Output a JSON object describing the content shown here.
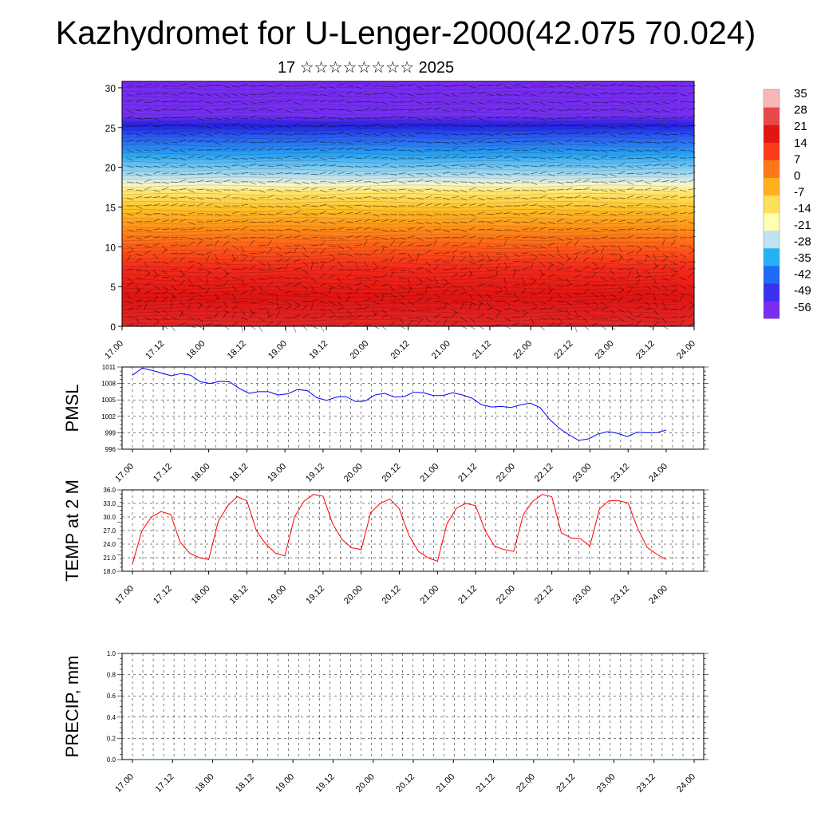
{
  "title": "Kazhydromet for U-Lenger-2000(42.075 70.024)",
  "subtitle": "17 ☆☆☆☆☆☆☆☆ 2025",
  "x_labels": [
    "17.00",
    "17.12",
    "18.00",
    "18.12",
    "19.00",
    "19.12",
    "20.00",
    "20.12",
    "21.00",
    "21.12",
    "22.00",
    "22.12",
    "23.00",
    "23.12",
    "24.00"
  ],
  "colorbar": {
    "labels": [
      "35",
      "28",
      "21",
      "14",
      "7",
      "0",
      "-7",
      "-14",
      "-21",
      "-28",
      "-35",
      "-42",
      "-49",
      "-56"
    ],
    "colors": [
      "#7a2cf0",
      "#3a30f0",
      "#1e6cf5",
      "#26b2f2",
      "#bfe3f2",
      "#ffffb0",
      "#ffe05a",
      "#ffb01e",
      "#ff7818",
      "#ff3a1a",
      "#e41414",
      "#e8484c",
      "#f8b8b8"
    ]
  },
  "chart_data": [
    {
      "type": "heatmap",
      "description_key": "vertical cross-section",
      "ylim": [
        0,
        30
      ],
      "yticks": [
        0,
        5,
        10,
        15,
        20,
        25,
        30
      ],
      "colorscale_range": [
        -56,
        35
      ]
    },
    {
      "type": "line",
      "ylabel": "PMSL",
      "ylim": [
        996,
        1011
      ],
      "yticks": [
        996,
        999,
        1002,
        1005,
        1008,
        1011
      ],
      "series": [
        {
          "color": "#0000ff",
          "values": [
            1009.5,
            1010.8,
            1010.4,
            1009.9,
            1009.4,
            1009.8,
            1009.5,
            1008.3,
            1008.0,
            1008.4,
            1008.3,
            1007.1,
            1006.2,
            1006.5,
            1006.5,
            1005.9,
            1006.1,
            1006.9,
            1006.7,
            1005.4,
            1004.9,
            1005.5,
            1005.6,
            1004.7,
            1004.8,
            1005.9,
            1006.2,
            1005.5,
            1005.6,
            1006.4,
            1006.3,
            1005.8,
            1005.8,
            1006.3,
            1005.9,
            1005.3,
            1004.1,
            1003.7,
            1003.8,
            1003.6,
            1004.1,
            1004.4,
            1003.6,
            1001.4,
            999.8,
            998.6,
            997.6,
            997.9,
            998.8,
            999.2,
            998.9,
            998.3,
            999.1,
            999.0,
            999.0,
            999.5
          ]
        }
      ],
      "x_range": [
        "17.00",
        "24.00"
      ],
      "grid": true
    },
    {
      "type": "line",
      "ylabel": "TEMP at 2 M",
      "ylim": [
        18.0,
        36.0
      ],
      "yticks": [
        "18.0",
        "21.0",
        "24.0",
        "27.0",
        "30.0",
        "33.0",
        "36.0"
      ],
      "series": [
        {
          "color": "#ff0000",
          "values": [
            19.6,
            27.0,
            30.0,
            31.2,
            30.6,
            24.5,
            22.0,
            21.0,
            20.6,
            29.0,
            32.5,
            34.5,
            33.6,
            27.0,
            24.0,
            22.0,
            21.4,
            30.0,
            33.5,
            35.0,
            34.6,
            28.5,
            25.0,
            23.2,
            22.8,
            31.0,
            33.0,
            34.0,
            31.8,
            26.0,
            22.4,
            21.0,
            20.2,
            28.5,
            32.0,
            33.0,
            32.5,
            27.0,
            23.5,
            22.8,
            22.4,
            30.5,
            33.5,
            35.0,
            34.5,
            26.5,
            25.4,
            25.2,
            23.6,
            31.8,
            33.6,
            33.6,
            33.1,
            27.5,
            23.3,
            21.8,
            20.6
          ]
        }
      ],
      "x_range": [
        "17.00",
        "24.00"
      ],
      "grid": true
    },
    {
      "type": "line",
      "ylabel": "PRECIP, mm",
      "ylim": [
        0.0,
        1.0
      ],
      "yticks": [
        "0.0",
        "0.2",
        "0.4",
        "0.6",
        "0.8",
        "1.0"
      ],
      "series": [
        {
          "color": "#006400",
          "values": [
            0,
            0,
            0,
            0,
            0,
            0,
            0,
            0,
            0,
            0,
            0,
            0,
            0,
            0,
            0,
            0,
            0,
            0,
            0,
            0,
            0,
            0,
            0,
            0,
            0,
            0,
            0,
            0,
            0,
            0,
            0,
            0,
            0,
            0,
            0,
            0,
            0,
            0,
            0,
            0,
            0,
            0,
            0,
            0,
            0,
            0,
            0,
            0,
            0,
            0,
            0,
            0,
            0,
            0,
            0,
            0,
            0
          ]
        }
      ],
      "x_range": [
        "17.00",
        "24.00"
      ],
      "grid": true
    }
  ]
}
